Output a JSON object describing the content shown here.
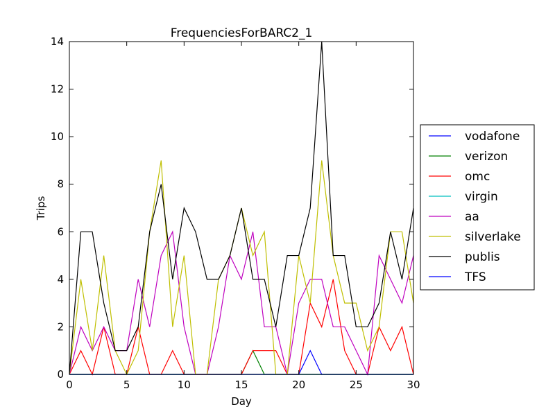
{
  "chart_data": {
    "type": "line",
    "title": "FrequenciesForBARC2_1",
    "xlabel": "Day",
    "ylabel": "Trips",
    "xlim": [
      0,
      30
    ],
    "ylim": [
      0,
      14
    ],
    "xticks": [
      0,
      5,
      10,
      15,
      20,
      25,
      30
    ],
    "yticks": [
      0,
      2,
      4,
      6,
      8,
      10,
      12,
      14
    ],
    "grid": false,
    "legend_position": "right",
    "x": [
      0,
      1,
      2,
      3,
      4,
      5,
      6,
      7,
      8,
      9,
      10,
      11,
      12,
      13,
      14,
      15,
      16,
      17,
      18,
      19,
      20,
      21,
      22,
      23,
      24,
      25,
      26,
      27,
      28,
      29,
      30
    ],
    "series": [
      {
        "name": "vodafone",
        "color": "#0000ff",
        "values": [
          0,
          0,
          0,
          0,
          0,
          0,
          0,
          0,
          0,
          0,
          0,
          0,
          0,
          0,
          0,
          0,
          0,
          0,
          0,
          0,
          0,
          0,
          0,
          0,
          0,
          0,
          0,
          0,
          0,
          0,
          0
        ]
      },
      {
        "name": "verizon",
        "color": "#008000",
        "values": [
          0,
          0,
          0,
          0,
          0,
          0,
          0,
          0,
          0,
          0,
          0,
          0,
          0,
          0,
          0,
          0,
          1,
          0,
          0,
          0,
          0,
          0,
          0,
          0,
          0,
          0,
          0,
          0,
          0,
          0,
          0
        ]
      },
      {
        "name": "omc",
        "color": "#ff0000",
        "values": [
          0,
          1,
          0,
          2,
          0,
          0,
          2,
          0,
          0,
          1,
          0,
          0,
          0,
          0,
          0,
          0,
          1,
          1,
          1,
          0,
          0,
          3,
          2,
          4,
          1,
          0,
          0,
          2,
          1,
          2,
          0
        ]
      },
      {
        "name": "virgin",
        "color": "#00bfbf",
        "values": [
          0,
          0,
          0,
          0,
          0,
          0,
          0,
          0,
          0,
          0,
          0,
          0,
          0,
          0,
          0,
          0,
          0,
          0,
          0,
          0,
          0,
          0,
          0,
          0,
          0,
          0,
          0,
          0,
          0,
          0,
          0
        ]
      },
      {
        "name": "aa",
        "color": "#bf00bf",
        "values": [
          0,
          2,
          1,
          2,
          1,
          1,
          4,
          2,
          5,
          6,
          2,
          0,
          0,
          2,
          5,
          4,
          6,
          2,
          2,
          0,
          3,
          4,
          4,
          2,
          2,
          1,
          0,
          5,
          4,
          3,
          5
        ]
      },
      {
        "name": "silverlake",
        "color": "#bfbf00",
        "values": [
          0,
          4,
          1,
          5,
          1,
          0,
          1,
          6,
          9,
          2,
          5,
          0,
          0,
          4,
          5,
          7,
          5,
          6,
          0,
          0,
          5,
          3,
          9,
          5,
          3,
          3,
          1,
          2,
          6,
          6,
          3
        ]
      },
      {
        "name": "publis",
        "color": "#000000",
        "values": [
          0,
          6,
          6,
          3,
          1,
          1,
          2,
          6,
          8,
          4,
          7,
          6,
          4,
          4,
          5,
          7,
          4,
          4,
          2,
          5,
          5,
          7,
          14,
          5,
          5,
          2,
          2,
          3,
          6,
          4,
          7
        ]
      },
      {
        "name": "TFS",
        "color": "#0000ff",
        "values": [
          0,
          0,
          0,
          0,
          0,
          0,
          0,
          0,
          0,
          0,
          0,
          0,
          0,
          0,
          0,
          0,
          0,
          0,
          0,
          0,
          0,
          1,
          0,
          0,
          0,
          0,
          0,
          0,
          0,
          0,
          0
        ]
      }
    ]
  }
}
